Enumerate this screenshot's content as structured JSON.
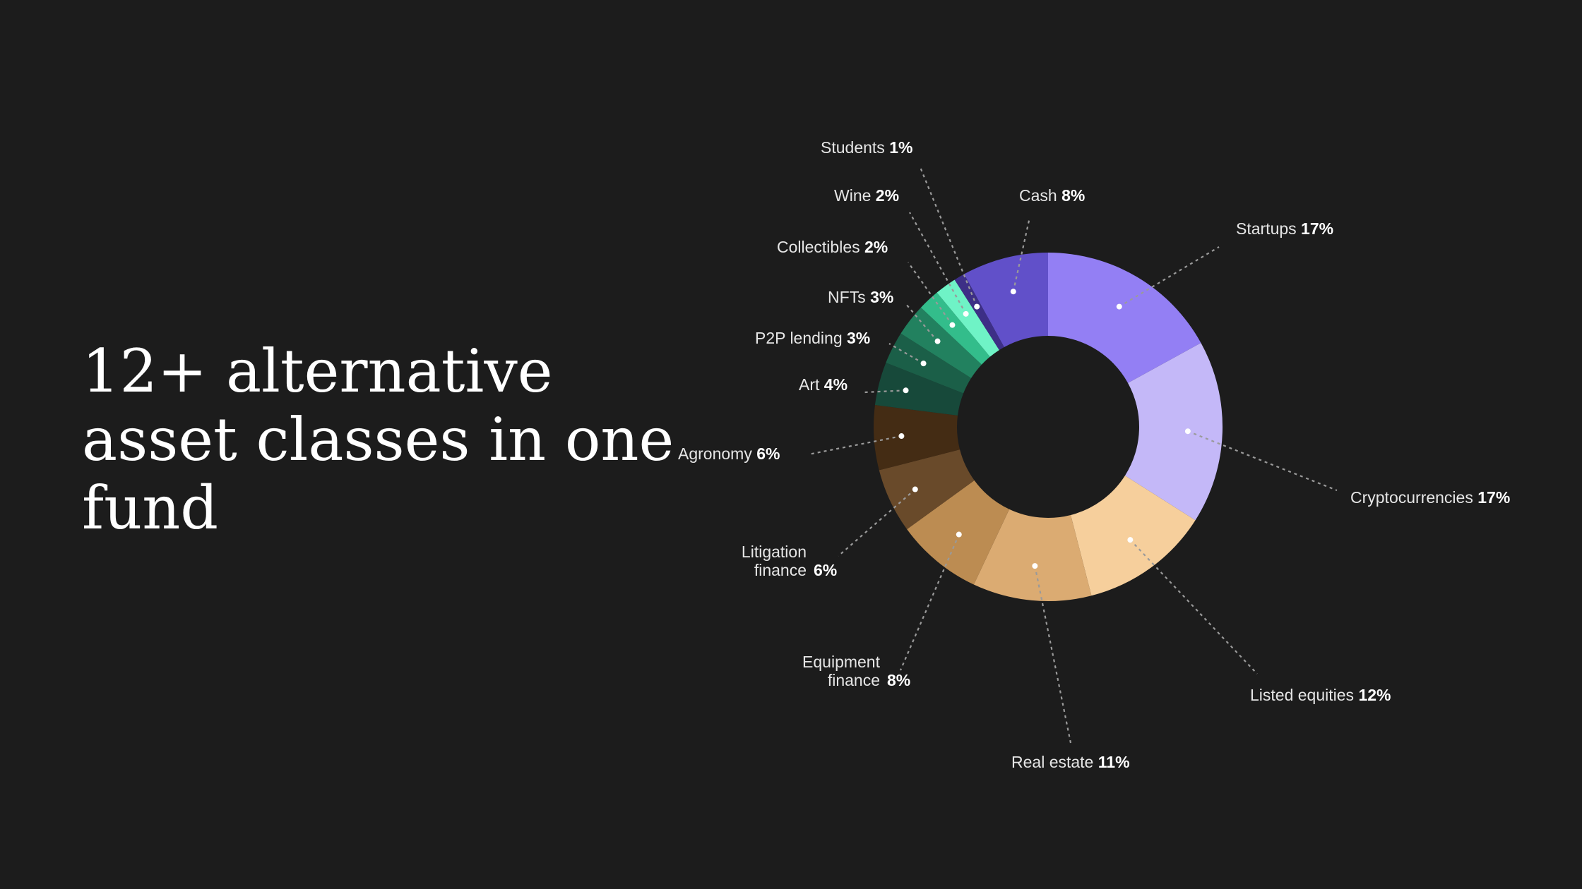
{
  "headline": {
    "line1": "12+ alternative",
    "line2": "asset classes in one",
    "line3": "fund"
  },
  "colors": {
    "background": "#1c1c1c",
    "text": "#ffffff",
    "leader_line": "#9a9a9a"
  },
  "chart_data": {
    "type": "pie",
    "subtype": "donut",
    "title": "12+ alternative asset classes in one fund",
    "unit": "%",
    "categories": [
      "Startups",
      "Cryptocurrencies",
      "Listed equities",
      "Real estate",
      "Equipment finance",
      "Litigation finance",
      "Agronomy",
      "Art",
      "P2P lending",
      "NFTs",
      "Collectibles",
      "Wine",
      "Students",
      "Cash"
    ],
    "values": [
      17,
      17,
      12,
      11,
      8,
      6,
      6,
      4,
      3,
      3,
      2,
      2,
      1,
      8
    ],
    "colors": [
      "#937ff4",
      "#c4b8f8",
      "#f6cf9c",
      "#dbab72",
      "#bc8c52",
      "#694a2a",
      "#442c14",
      "#17493a",
      "#1b5f48",
      "#22815f",
      "#33bd8b",
      "#6ff3c6",
      "#3d2f86",
      "#6150c9"
    ],
    "labels": [
      {
        "name": "Startups",
        "pct": "17%"
      },
      {
        "name": "Cryptocurrencies",
        "pct": "17%"
      },
      {
        "name": "Listed equities",
        "pct": "12%"
      },
      {
        "name": "Real estate",
        "pct": "11%"
      },
      {
        "name": "Equipment",
        "name2": "finance",
        "pct": "8%"
      },
      {
        "name": "Litigation",
        "name2": "finance",
        "pct": "6%"
      },
      {
        "name": "Agronomy",
        "pct": "6%"
      },
      {
        "name": "Art",
        "pct": "4%"
      },
      {
        "name": "P2P lending",
        "pct": "3%"
      },
      {
        "name": "NFTs",
        "pct": "3%"
      },
      {
        "name": "Collectibles",
        "pct": "2%"
      },
      {
        "name": "Wine",
        "pct": "2%"
      },
      {
        "name": "Students",
        "pct": "1%"
      },
      {
        "name": "Cash",
        "pct": "8%"
      }
    ],
    "start_angle_deg": 0,
    "direction": "clockwise",
    "legend": "none (direct labels with dotted leader lines)"
  }
}
